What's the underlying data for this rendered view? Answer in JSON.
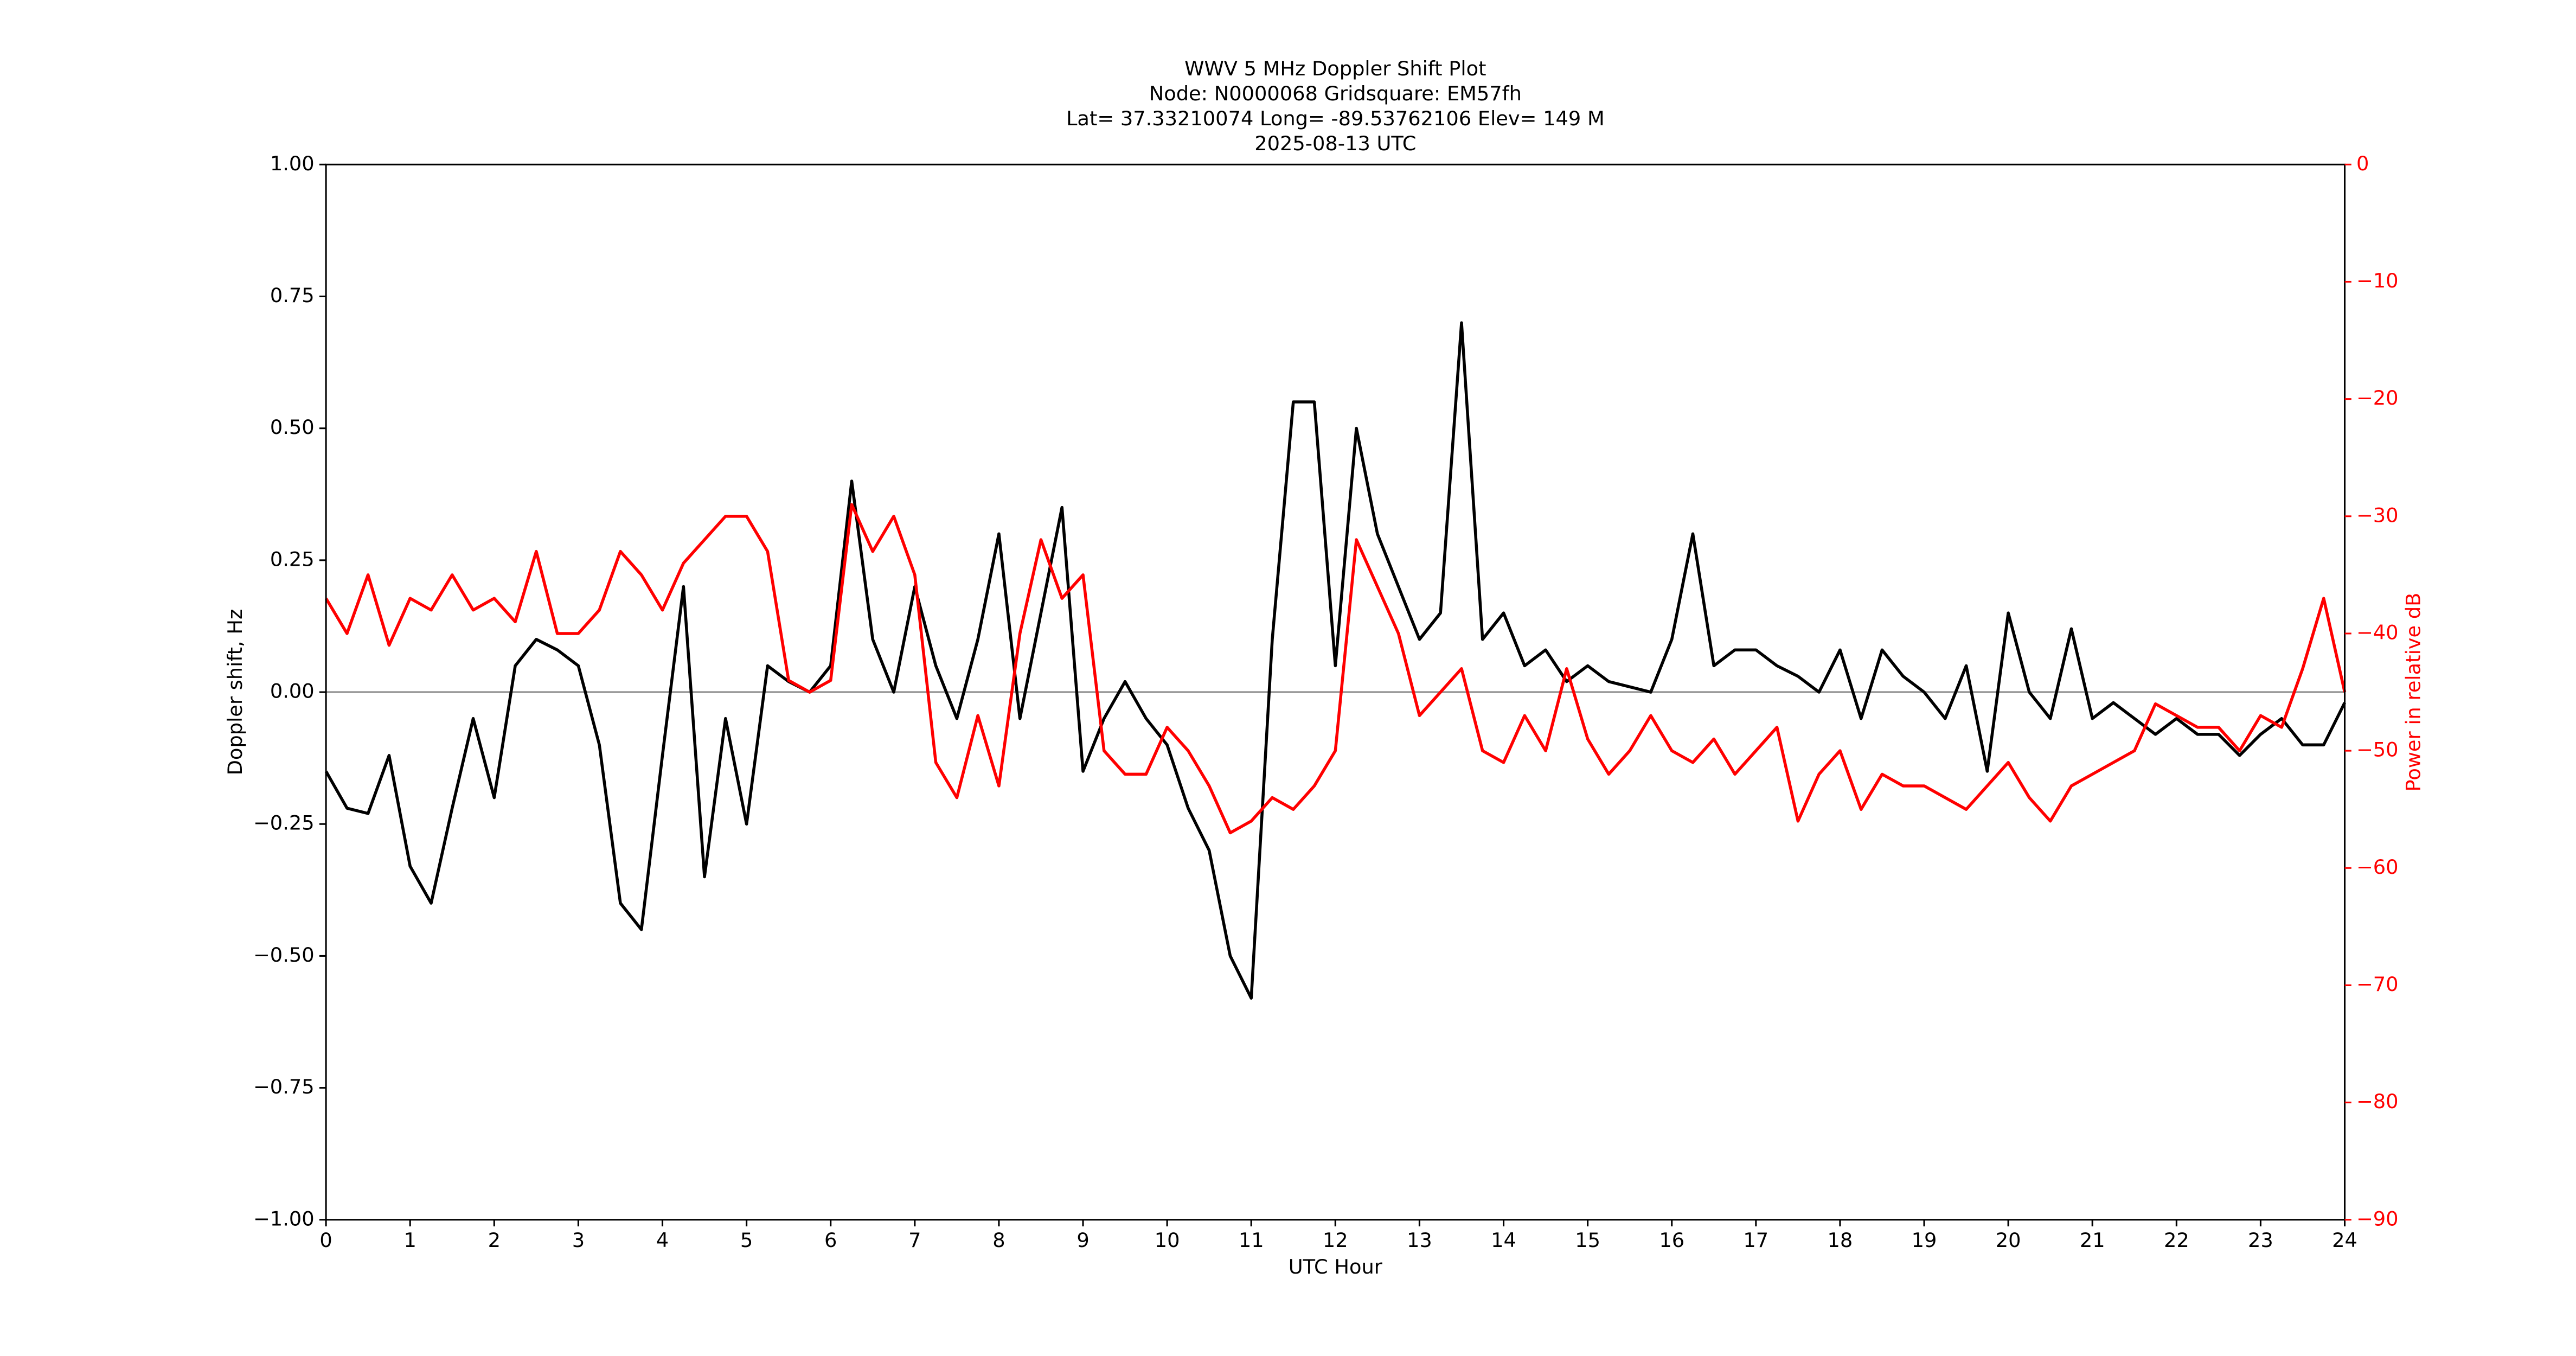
{
  "chart_data": {
    "type": "line",
    "title": [
      "WWV 5 MHz Doppler Shift Plot",
      "Node:  N0000068     Gridsquare:  EM57fh",
      "Lat= 37.33210074    Long= -89.53762106    Elev= 149 M",
      "2025-08-13  UTC"
    ],
    "xlabel": "UTC Hour",
    "ylabel": "Doppler shift, Hz",
    "y2label": "Power in relative dB",
    "y2color": "#ff0000",
    "reference_line": 0,
    "xlim": [
      0,
      24
    ],
    "xticks": [
      0,
      1,
      2,
      3,
      4,
      5,
      6,
      7,
      8,
      9,
      10,
      11,
      12,
      13,
      14,
      15,
      16,
      17,
      18,
      19,
      20,
      21,
      22,
      23,
      24
    ],
    "ylim": [
      -1,
      1
    ],
    "yticks": [
      {
        "value": 1,
        "label": "1.00"
      },
      {
        "value": 0.75,
        "label": "0.75"
      },
      {
        "value": 0.5,
        "label": "0.50"
      },
      {
        "value": 0.25,
        "label": "0.25"
      },
      {
        "value": 0,
        "label": "0.00"
      },
      {
        "value": -0.25,
        "label": "−0.25"
      },
      {
        "value": -0.5,
        "label": "−0.50"
      },
      {
        "value": -0.75,
        "label": "−0.75"
      },
      {
        "value": -1,
        "label": "−1.00"
      }
    ],
    "y2lim": [
      -90,
      0
    ],
    "y2ticks": [
      0,
      {
        "value": -10,
        "label": "−10"
      },
      {
        "value": -20,
        "label": "−20"
      },
      {
        "value": -30,
        "label": "−30"
      },
      {
        "value": -40,
        "label": "−40"
      },
      {
        "value": -50,
        "label": "−50"
      },
      {
        "value": -60,
        "label": "−60"
      },
      {
        "value": -70,
        "label": "−70"
      },
      {
        "value": -80,
        "label": "−80"
      },
      {
        "value": -90,
        "label": "−90"
      }
    ],
    "x": [
      0,
      0.25,
      0.5,
      0.75,
      1,
      1.25,
      1.5,
      1.75,
      2,
      2.25,
      2.5,
      2.75,
      3,
      3.25,
      3.5,
      3.75,
      4,
      4.25,
      4.5,
      4.75,
      5,
      5.25,
      5.5,
      5.75,
      6,
      6.25,
      6.5,
      6.75,
      7,
      7.25,
      7.5,
      7.75,
      8,
      8.25,
      8.5,
      8.75,
      9,
      9.25,
      9.5,
      9.75,
      10,
      10.25,
      10.5,
      10.75,
      11,
      11.25,
      11.5,
      11.75,
      12,
      12.25,
      12.5,
      12.75,
      13,
      13.25,
      13.5,
      13.75,
      14,
      14.25,
      14.5,
      14.75,
      15,
      15.25,
      15.5,
      15.75,
      16,
      16.25,
      16.5,
      16.75,
      17,
      17.25,
      17.5,
      17.75,
      18,
      18.25,
      18.5,
      18.75,
      19,
      19.25,
      19.5,
      19.75,
      20,
      20.25,
      20.5,
      20.75,
      21,
      21.25,
      21.5,
      21.75,
      22,
      22.25,
      22.5,
      22.75,
      23,
      23.25,
      23.5,
      23.75,
      24
    ],
    "series": [
      {
        "color": "#000000",
        "values": [
          -0.15,
          -0.22,
          -0.23,
          -0.12,
          -0.33,
          -0.4,
          -0.22,
          -0.05,
          -0.2,
          0.05,
          0.1,
          0.08,
          0.05,
          -0.1,
          -0.4,
          -0.45,
          -0.12,
          0.2,
          -0.35,
          -0.05,
          -0.25,
          0.05,
          0.02,
          0,
          0.05,
          0.4,
          0.1,
          0,
          0.2,
          0.05,
          -0.05,
          0.1,
          0.3,
          -0.05,
          0.15,
          0.35,
          -0.15,
          -0.05,
          0.02,
          -0.05,
          -0.1,
          -0.22,
          -0.3,
          -0.5,
          -0.58,
          0.1,
          0.55,
          0.55,
          0.05,
          0.5,
          0.3,
          0.2,
          0.1,
          0.15,
          0.7,
          0.1,
          0.15,
          0.05,
          0.08,
          0.02,
          0.05,
          0.02,
          0.01,
          0,
          0.1,
          0.3,
          0.05,
          0.08,
          0.08,
          0.05,
          0.03,
          0,
          0.08,
          -0.05,
          0.08,
          0.03,
          0,
          -0.05,
          0.05,
          -0.15,
          0.15,
          0,
          -0.05,
          0.12,
          -0.05,
          -0.02,
          -0.05,
          -0.08,
          -0.05,
          -0.08,
          -0.08,
          -0.12,
          -0.08,
          -0.05,
          -0.1,
          -0.1,
          -0.02
        ]
      },
      {
        "color": "#ff0000",
        "axis": "y2",
        "values": [
          -37,
          -40,
          -35,
          -41,
          -37,
          -38,
          -35,
          -38,
          -37,
          -39,
          -33,
          -40,
          -40,
          -38,
          -33,
          -35,
          -38,
          -34,
          -32,
          -30,
          -30,
          -33,
          -44,
          -45,
          -44,
          -29,
          -33,
          -30,
          -35,
          -51,
          -54,
          -47,
          -53,
          -40,
          -32,
          -37,
          -35,
          -50,
          -52,
          -52,
          -48,
          -50,
          -53,
          -57,
          -56,
          -54,
          -55,
          -53,
          -50,
          -32,
          -36,
          -40,
          -47,
          -45,
          -43,
          -50,
          -51,
          -47,
          -50,
          -43,
          -49,
          -52,
          -50,
          -47,
          -50,
          -51,
          -49,
          -52,
          -50,
          -48,
          -56,
          -52,
          -50,
          -55,
          -52,
          -53,
          -53,
          -54,
          -55,
          -53,
          -51,
          -54,
          -56,
          -53,
          -52,
          -51,
          -50,
          -46,
          -47,
          -48,
          -48,
          -50,
          -47,
          -48,
          -43,
          -37,
          -45
        ]
      }
    ]
  }
}
